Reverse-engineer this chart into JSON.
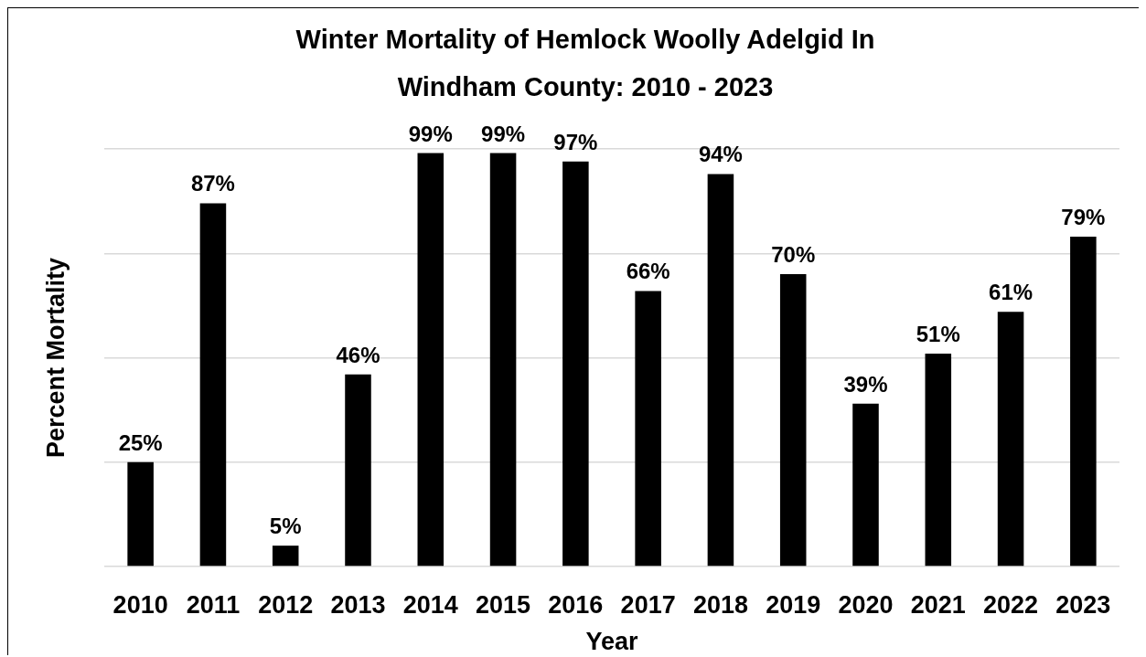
{
  "chart_data": {
    "type": "bar",
    "title": "Winter Mortality of Hemlock Woolly Adelgid In Windham County: 2010 - 2023",
    "xlabel": "Year",
    "ylabel": "Percent Mortality",
    "categories": [
      "2010",
      "2011",
      "2012",
      "2013",
      "2014",
      "2015",
      "2016",
      "2017",
      "2018",
      "2019",
      "2020",
      "2021",
      "2022",
      "2023"
    ],
    "values": [
      25,
      87,
      5,
      46,
      99,
      99,
      97,
      66,
      94,
      70,
      39,
      51,
      61,
      79
    ],
    "color": "#000000",
    "value_labels": [
      "25%",
      "87%",
      "5%",
      "46%",
      "99%",
      "99%",
      "97%",
      "66%",
      "94%",
      "70%",
      "39%",
      "51%",
      "61%",
      "79%"
    ],
    "ylim": [
      0,
      100
    ],
    "yticks": [
      {
        "value": 0,
        "label": null
      },
      {
        "value": 25,
        "label": null
      },
      {
        "value": 50,
        "label": null
      },
      {
        "value": 75,
        "label": null
      },
      {
        "value": 100,
        "label": null
      }
    ],
    "grid": "y",
    "tick_labels": "x"
  }
}
